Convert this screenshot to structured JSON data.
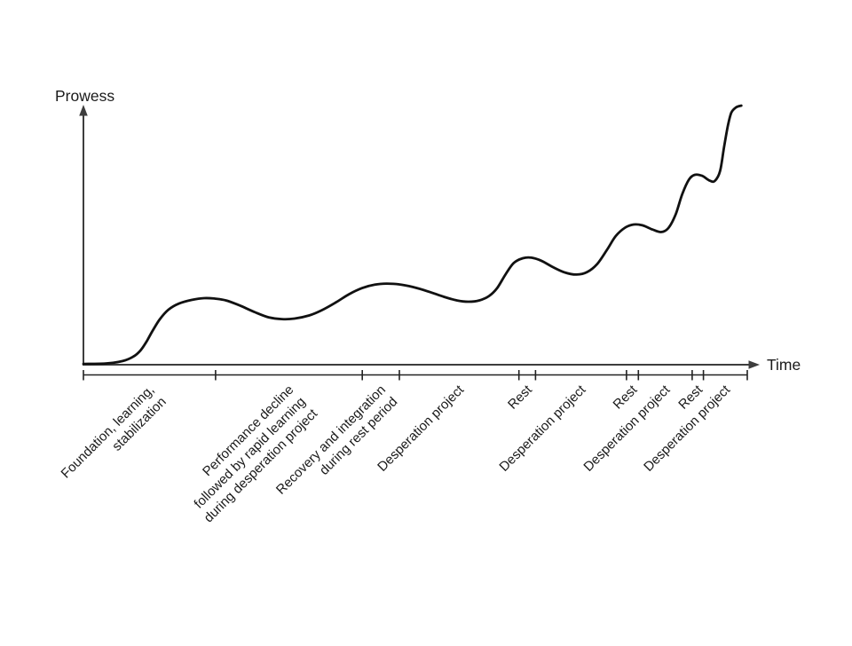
{
  "chart_data": {
    "type": "line",
    "title": "",
    "xlabel": "Time",
    "ylabel": "Prowess",
    "grid": false,
    "legend": false,
    "axis_style": "arrows-no-numeric-ticks",
    "x_range_units": [
      0,
      100
    ],
    "y_range_units": [
      0,
      100
    ],
    "phases": [
      {
        "label_lines": [
          "Foundation, learning,",
          "stabilization"
        ],
        "start": 0.0,
        "end": 19.9
      },
      {
        "label_lines": [
          "Performance decline",
          "followed by rapid learning",
          "during desperation project"
        ],
        "start": 19.9,
        "end": 42.0
      },
      {
        "label_lines": [
          "Recovery and integration",
          "during rest period"
        ],
        "start": 42.0,
        "end": 47.6
      },
      {
        "label_lines": [
          "Desperation project"
        ],
        "start": 47.6,
        "end": 65.6
      },
      {
        "label_lines": [
          "Rest"
        ],
        "start": 65.6,
        "end": 68.1
      },
      {
        "label_lines": [
          "Desperation project"
        ],
        "start": 68.1,
        "end": 81.8
      },
      {
        "label_lines": [
          "Rest"
        ],
        "start": 81.8,
        "end": 83.6
      },
      {
        "label_lines": [
          "Desperation project"
        ],
        "start": 83.6,
        "end": 91.7
      },
      {
        "label_lines": [
          "Rest"
        ],
        "start": 91.7,
        "end": 93.4
      },
      {
        "label_lines": [
          "Desperation project"
        ],
        "start": 93.4,
        "end": 100.0
      }
    ],
    "series": [
      {
        "name": "prowess-over-time",
        "points": [
          [
            0.0,
            0.3
          ],
          [
            3.5,
            0.5
          ],
          [
            5.9,
            1.4
          ],
          [
            7.5,
            3.1
          ],
          [
            8.6,
            5.5
          ],
          [
            9.5,
            8.9
          ],
          [
            10.4,
            13.0
          ],
          [
            11.5,
            17.5
          ],
          [
            12.8,
            21.2
          ],
          [
            14.4,
            23.6
          ],
          [
            16.3,
            25.0
          ],
          [
            18.2,
            25.7
          ],
          [
            19.8,
            25.5
          ],
          [
            21.5,
            24.8
          ],
          [
            23.5,
            22.9
          ],
          [
            25.9,
            20.2
          ],
          [
            27.9,
            18.3
          ],
          [
            29.9,
            17.6
          ],
          [
            31.8,
            17.8
          ],
          [
            34.0,
            19.0
          ],
          [
            35.8,
            20.9
          ],
          [
            38.0,
            24.0
          ],
          [
            40.0,
            27.2
          ],
          [
            42.0,
            29.6
          ],
          [
            43.9,
            30.9
          ],
          [
            45.7,
            31.3
          ],
          [
            47.6,
            31.0
          ],
          [
            49.6,
            30.0
          ],
          [
            51.9,
            28.3
          ],
          [
            54.3,
            26.2
          ],
          [
            56.3,
            24.8
          ],
          [
            58.0,
            24.3
          ],
          [
            59.6,
            24.8
          ],
          [
            61.1,
            26.5
          ],
          [
            62.3,
            29.5
          ],
          [
            63.6,
            34.9
          ],
          [
            64.8,
            39.2
          ],
          [
            66.2,
            41.1
          ],
          [
            67.5,
            41.3
          ],
          [
            69.0,
            40.1
          ],
          [
            70.7,
            37.7
          ],
          [
            72.5,
            35.6
          ],
          [
            74.3,
            34.8
          ],
          [
            75.9,
            35.8
          ],
          [
            77.4,
            38.9
          ],
          [
            78.9,
            44.5
          ],
          [
            80.2,
            49.7
          ],
          [
            81.6,
            52.9
          ],
          [
            82.9,
            54.1
          ],
          [
            84.2,
            53.8
          ],
          [
            85.7,
            52.2
          ],
          [
            87.0,
            51.2
          ],
          [
            88.1,
            52.7
          ],
          [
            89.2,
            57.9
          ],
          [
            90.2,
            65.8
          ],
          [
            91.2,
            71.4
          ],
          [
            92.1,
            73.3
          ],
          [
            93.2,
            72.9
          ],
          [
            94.3,
            71.1
          ],
          [
            95.1,
            70.9
          ],
          [
            95.9,
            74.7
          ],
          [
            96.5,
            83.9
          ],
          [
            97.1,
            92.5
          ],
          [
            97.6,
            97.3
          ],
          [
            98.3,
            99.3
          ],
          [
            99.1,
            100.0
          ]
        ]
      }
    ]
  },
  "colors": {
    "curve": "#111111",
    "axis": "#3d3d3d",
    "phase_scale": "#222222",
    "text": "#1a1a1a",
    "background": "#ffffff"
  }
}
